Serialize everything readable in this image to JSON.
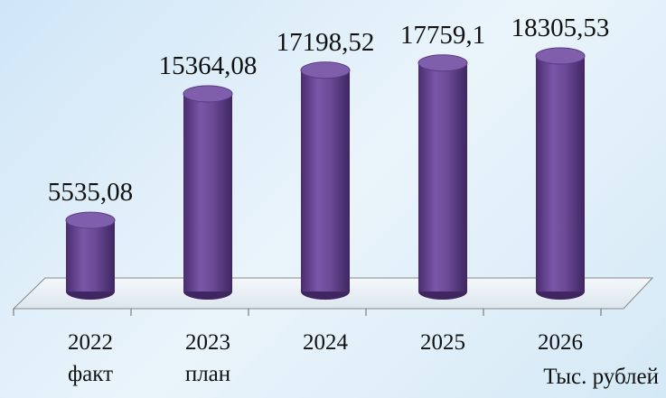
{
  "chart_data": {
    "type": "bar",
    "categories": [
      "2022\nфакт",
      "2023\nплан",
      "2024",
      "2025",
      "2026"
    ],
    "values": [
      5535.08,
      15364.08,
      17198.52,
      17759.1,
      18305.53
    ],
    "value_labels": [
      "5535,08",
      "15364,08",
      "17198,52",
      "17759,1",
      "18305,53"
    ],
    "color": "#5b3a86",
    "annotation": "Тыс. рублей"
  }
}
